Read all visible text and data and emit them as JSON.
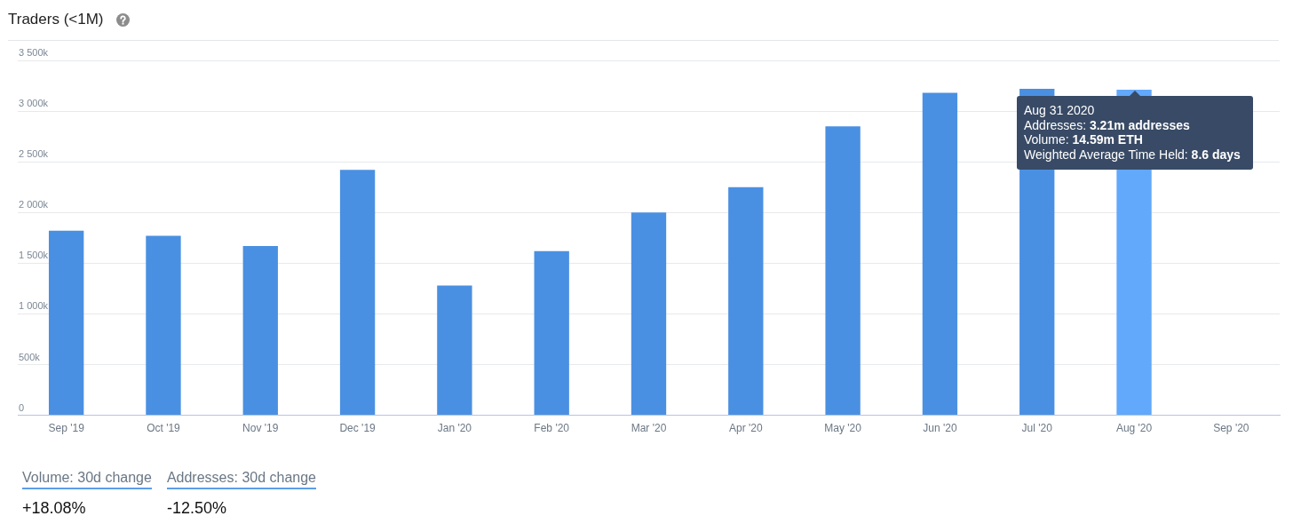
{
  "chart_data": {
    "type": "bar",
    "title": "Traders (<1M)",
    "categories": [
      "Sep '19",
      "Oct '19",
      "Nov '19",
      "Dec '19",
      "Jan '20",
      "Feb '20",
      "Mar '20",
      "Apr '20",
      "May '20",
      "Jun '20",
      "Jul '20",
      "Aug '20",
      "Sep '20"
    ],
    "values": [
      1820,
      1770,
      1670,
      2420,
      1280,
      1620,
      2000,
      2250,
      2850,
      3180,
      3220,
      3210,
      null
    ],
    "colors": [
      "#4a90e2",
      "#4a90e2",
      "#4a90e2",
      "#4a90e2",
      "#4a90e2",
      "#4a90e2",
      "#4a90e2",
      "#4a90e2",
      "#4a90e2",
      "#4a90e2",
      "#4a90e2",
      "#62a8fb",
      "#4a90e2"
    ],
    "ylim": [
      0,
      3500
    ],
    "yticks": [
      0,
      {
        "value": 500,
        "label": "500k"
      },
      {
        "value": 1000,
        "label": "1 000k"
      },
      {
        "value": 1500,
        "label": "1 500k"
      },
      {
        "value": 2000,
        "label": "2 000k"
      },
      {
        "value": 2500,
        "label": "2 500k"
      },
      {
        "value": 3000,
        "label": "3 000k"
      },
      {
        "value": 3500,
        "label": "3 500k"
      }
    ],
    "grid": "y",
    "annotations": [
      "Aug 31 2020\nAddresses: 3.21m addresses\nVolume: 14.59m ETH\nWeighted Average Time Held: 8.6 days",
      "Volume: 30d change",
      "+18.08%",
      "Addresses: 30d change",
      "-12.50%"
    ]
  }
}
